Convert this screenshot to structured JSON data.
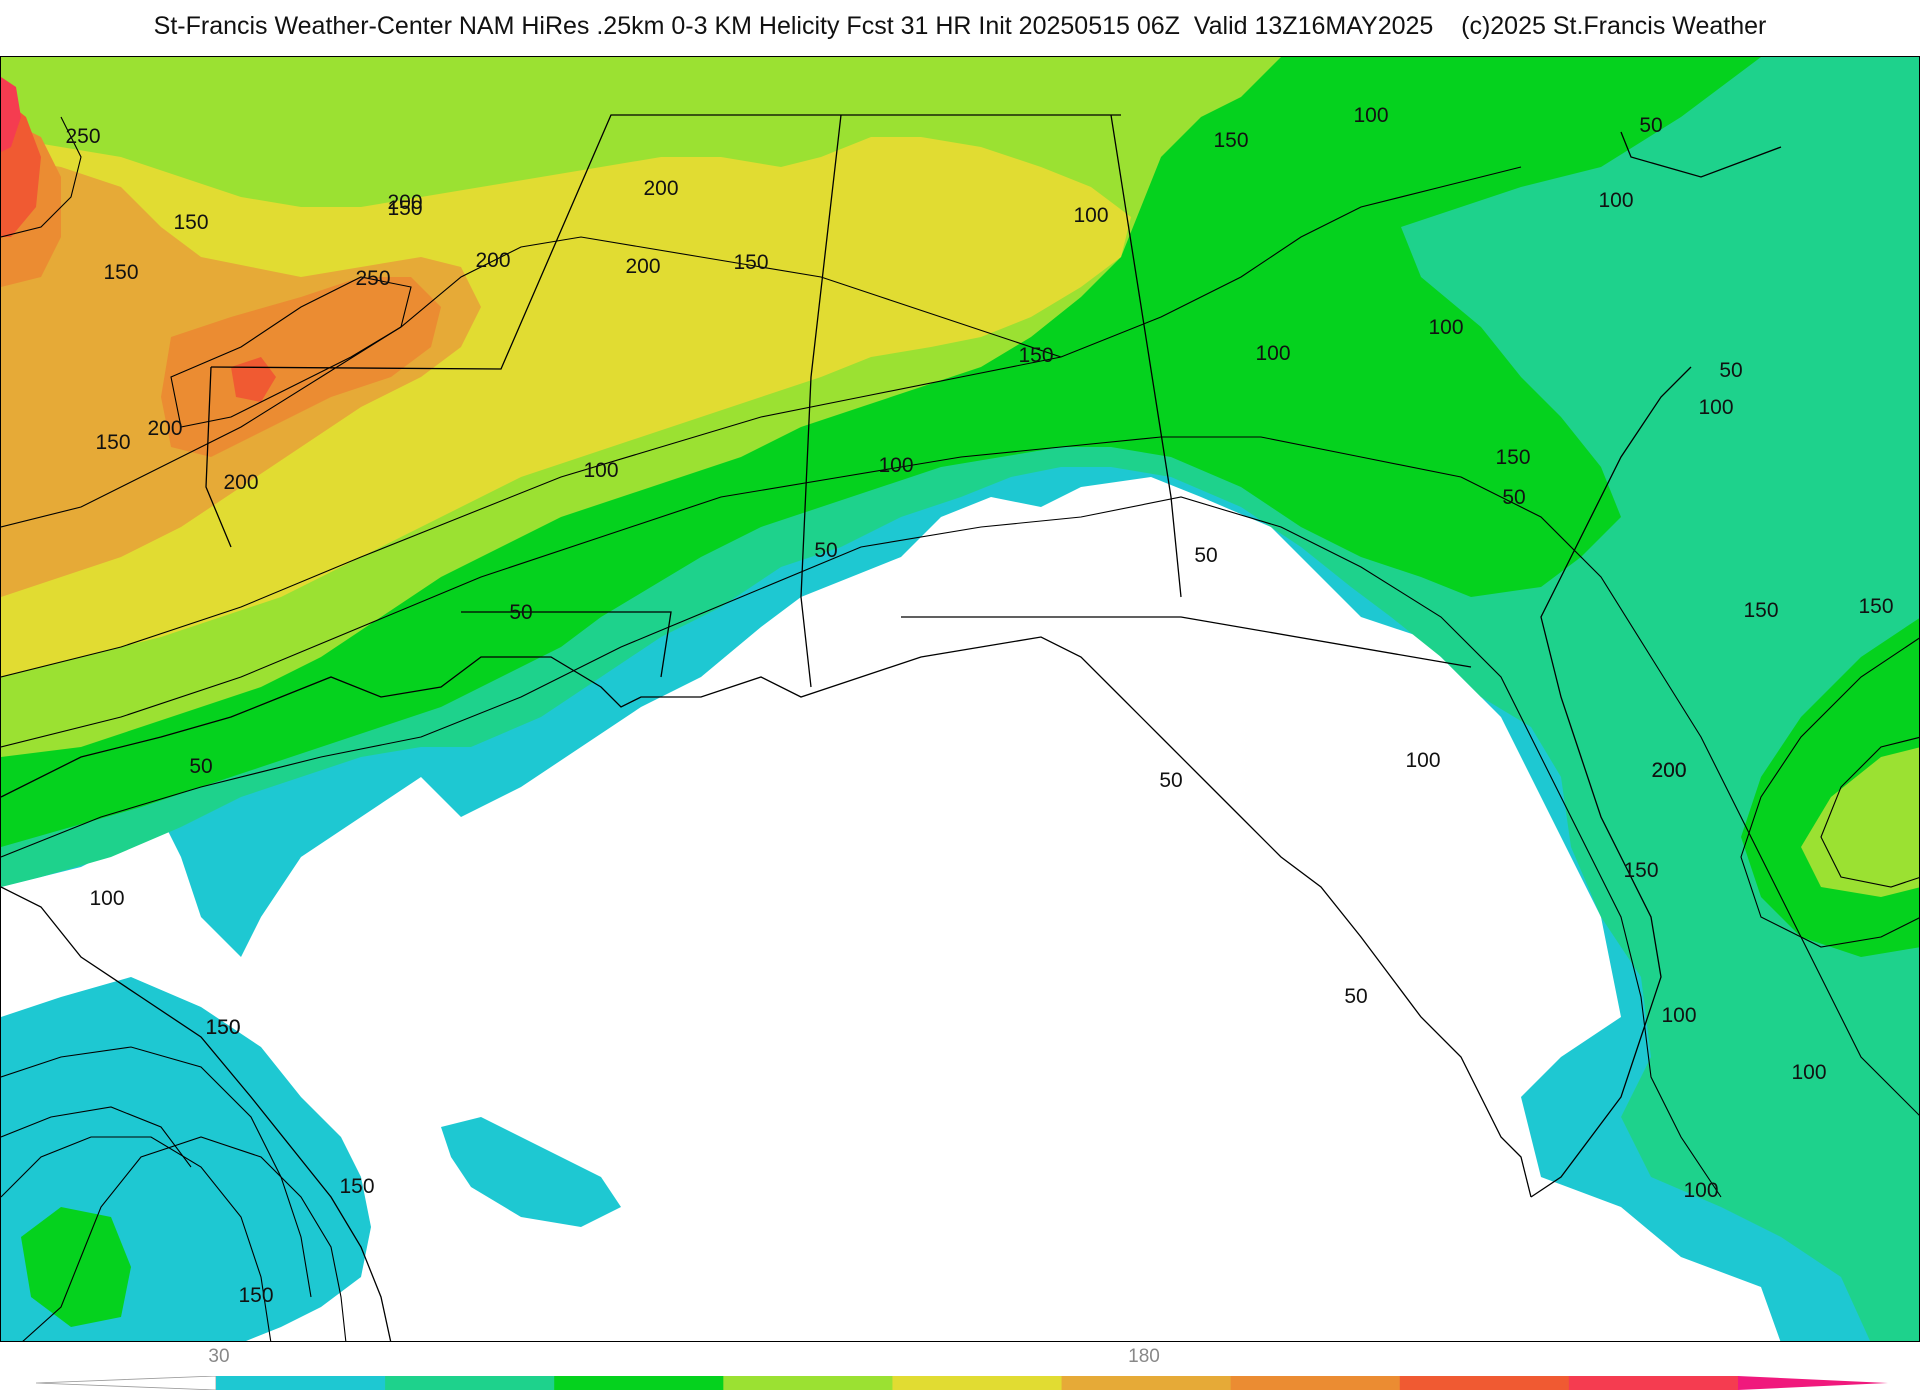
{
  "header": {
    "title": "St-Francis Weather-Center NAM HiRes .25km 0-3 KM Helicity Fcst 31 HR Init 20250515 06Z  Valid 13Z16MAY2025    (c)2025 St.Francis Weather"
  },
  "map": {
    "field": "0-3 KM Helicity",
    "contour_labels": [
      {
        "text": "250"
      },
      {
        "text": "150"
      },
      {
        "text": "200"
      },
      {
        "text": "150"
      },
      {
        "text": "200"
      },
      {
        "text": "250"
      },
      {
        "text": "200"
      },
      {
        "text": "150"
      },
      {
        "text": "200"
      },
      {
        "text": "200"
      },
      {
        "text": "150"
      },
      {
        "text": "200"
      },
      {
        "text": "150"
      },
      {
        "text": "150"
      },
      {
        "text": "100"
      },
      {
        "text": "150"
      },
      {
        "text": "100"
      },
      {
        "text": "100"
      },
      {
        "text": "50"
      },
      {
        "text": "100"
      },
      {
        "text": "100"
      },
      {
        "text": "50"
      },
      {
        "text": "100"
      },
      {
        "text": "50"
      },
      {
        "text": "150"
      },
      {
        "text": "50"
      },
      {
        "text": "100"
      },
      {
        "text": "100"
      },
      {
        "text": "50"
      },
      {
        "text": "150"
      },
      {
        "text": "150"
      },
      {
        "text": "200"
      },
      {
        "text": "200"
      },
      {
        "text": "150"
      },
      {
        "text": "100"
      },
      {
        "text": "100"
      },
      {
        "text": "50"
      },
      {
        "text": "50"
      },
      {
        "text": "100"
      },
      {
        "text": "150"
      },
      {
        "text": "150"
      },
      {
        "text": "50"
      },
      {
        "text": "100"
      },
      {
        "text": "150"
      },
      {
        "text": "50"
      },
      {
        "text": "100"
      },
      {
        "text": "150"
      }
    ],
    "colors": {
      "band_30": "#1ec8d2",
      "band_60": "#1ed28c",
      "band_90": "#05d21e",
      "band_120": "#9be132",
      "band_150": "#e1dc32",
      "band_180": "#e6aa37",
      "band_210": "#eb8c32",
      "band_240": "#f05a32",
      "band_270": "#f53c50",
      "band_300": "#f0197d"
    }
  },
  "colorbar": {
    "tick_labels": [
      "30",
      "180"
    ],
    "colors": [
      "#1ec8d2",
      "#1ed28c",
      "#05d21e",
      "#9be132",
      "#e1dc32",
      "#e6aa37",
      "#eb8c32",
      "#f05a32",
      "#f53c50",
      "#f0197d"
    ]
  }
}
